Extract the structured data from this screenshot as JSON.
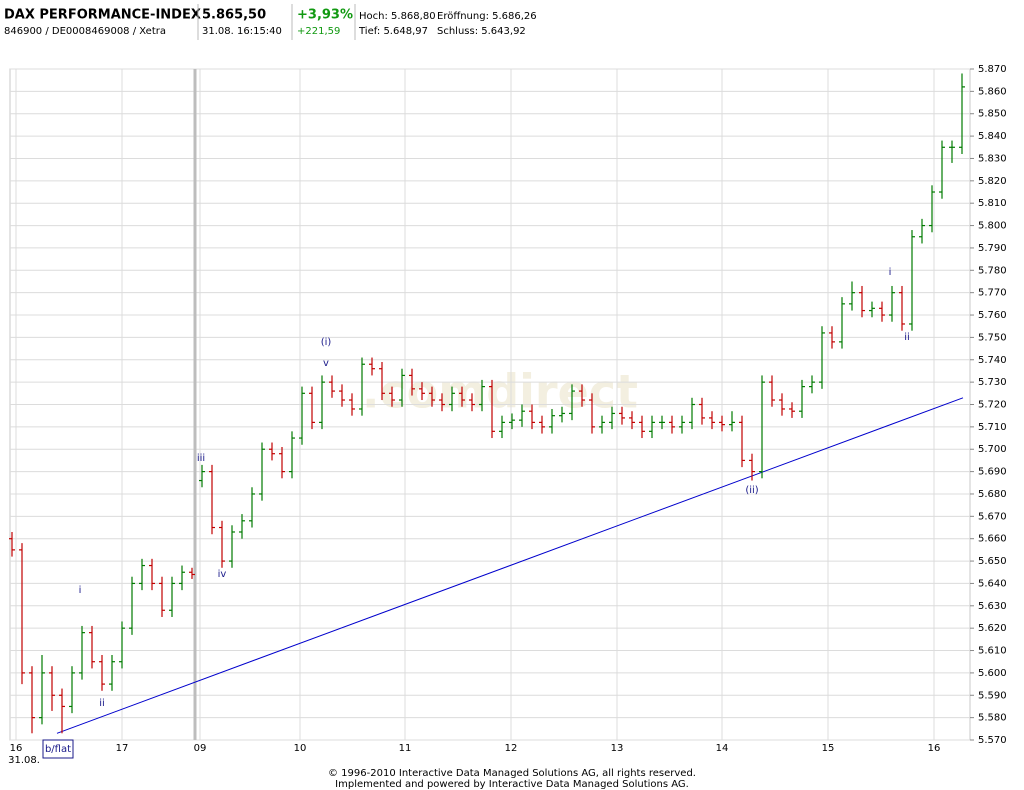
{
  "header": {
    "name": "DAX PERFORMANCE-INDEX",
    "id": "846900 / DE0008469008 / Xetra",
    "price": "5.865,50",
    "time": "31.08. 16:15:40",
    "change_pct": "+3,93%",
    "change_abs": "+221,59",
    "high": "Hoch: 5.868,80",
    "open": "Eröffnung: 5.686,26",
    "low": "Tief: 5.648,97",
    "prev_close": "Schluss: 5.643,92"
  },
  "footer": [
    "© 1996-2010 Interactive Data Managed Solutions AG, all rights reserved.",
    "Implemented and powered by Interactive Data Managed Solutions AG."
  ],
  "chart_data": {
    "type": "ohlc",
    "watermark": ".comdirect",
    "up_color": "#007a00",
    "down_color": "#c00000",
    "grid": true,
    "ylim": [
      5570,
      5870
    ],
    "yticks": [
      {
        "value": 5570,
        "label": "5.570"
      },
      {
        "value": 5580,
        "label": "5.580"
      },
      {
        "value": 5590,
        "label": "5.590"
      },
      {
        "value": 5600,
        "label": "5.600"
      },
      {
        "value": 5610,
        "label": "5.610"
      },
      {
        "value": 5620,
        "label": "5.620"
      },
      {
        "value": 5630,
        "label": "5.630"
      },
      {
        "value": 5640,
        "label": "5.640"
      },
      {
        "value": 5650,
        "label": "5.650"
      },
      {
        "value": 5660,
        "label": "5.660"
      },
      {
        "value": 5670,
        "label": "5.670"
      },
      {
        "value": 5680,
        "label": "5.680"
      },
      {
        "value": 5690,
        "label": "5.690"
      },
      {
        "value": 5700,
        "label": "5.700"
      },
      {
        "value": 5710,
        "label": "5.710"
      },
      {
        "value": 5720,
        "label": "5.720"
      },
      {
        "value": 5730,
        "label": "5.730"
      },
      {
        "value": 5740,
        "label": "5.740"
      },
      {
        "value": 5750,
        "label": "5.750"
      },
      {
        "value": 5760,
        "label": "5.760"
      },
      {
        "value": 5770,
        "label": "5.770"
      },
      {
        "value": 5780,
        "label": "5.780"
      },
      {
        "value": 5790,
        "label": "5.790"
      },
      {
        "value": 5800,
        "label": "5.800"
      },
      {
        "value": 5810,
        "label": "5.810"
      },
      {
        "value": 5820,
        "label": "5.820"
      },
      {
        "value": 5830,
        "label": "5.830"
      },
      {
        "value": 5840,
        "label": "5.840"
      },
      {
        "value": 5850,
        "label": "5.850"
      },
      {
        "value": 5860,
        "label": "5.860"
      },
      {
        "value": 5870,
        "label": "5.870"
      }
    ],
    "xlim": [
      -0.2,
      95.8
    ],
    "xticks": [
      {
        "value": 0.4,
        "label": "16"
      },
      {
        "value": 11,
        "label": "17"
      },
      {
        "value": 18.8,
        "label": "09"
      },
      {
        "value": 28.8,
        "label": "10"
      },
      {
        "value": 39.3,
        "label": "11"
      },
      {
        "value": 49.9,
        "label": "12"
      },
      {
        "value": 60.5,
        "label": "13"
      },
      {
        "value": 71,
        "label": "14"
      },
      {
        "value": 81.6,
        "label": "15"
      },
      {
        "value": 92.2,
        "label": "16"
      }
    ],
    "x_sublabel": "31.08.",
    "trendline": {
      "color": "#0000cc",
      "x": [
        4.5,
        95.1
      ],
      "y": [
        5573,
        5723
      ]
    },
    "annotations": [
      "b/flat",
      "i",
      "ii",
      "iii",
      "iv",
      "(i)",
      "v",
      "(ii)",
      "i",
      "ii"
    ],
    "bars": [
      [
        5660,
        5663,
        5652,
        5655
      ],
      [
        5655,
        5658,
        5595,
        5600
      ],
      [
        5600,
        5603,
        5573,
        5580
      ],
      [
        5580,
        5608,
        5577,
        5600
      ],
      [
        5600,
        5603,
        5583,
        5590
      ],
      [
        5590,
        5593,
        5573,
        5585
      ],
      [
        5585,
        5603,
        5582,
        5600
      ],
      [
        5600,
        5621,
        5597,
        5618
      ],
      [
        5618,
        5621,
        5602,
        5605
      ],
      [
        5605,
        5608,
        5592,
        5595
      ],
      [
        5595,
        5608,
        5592,
        5605
      ],
      [
        5605,
        5623,
        5602,
        5620
      ],
      [
        5620,
        5643,
        5617,
        5640
      ],
      [
        5640,
        5651,
        5637,
        5648
      ],
      [
        5648,
        5651,
        5637,
        5640
      ],
      [
        5640,
        5643,
        5625,
        5628
      ],
      [
        5628,
        5643,
        5625,
        5640
      ],
      [
        5640,
        5648,
        5637,
        5645
      ],
      [
        5645,
        5647,
        5642,
        5644
      ],
      [
        5686,
        5693,
        5683,
        5690
      ],
      [
        5690,
        5693,
        5662,
        5665
      ],
      [
        5665,
        5668,
        5647,
        5650
      ],
      [
        5650,
        5666,
        5647,
        5663
      ],
      [
        5663,
        5671,
        5660,
        5668
      ],
      [
        5668,
        5683,
        5665,
        5680
      ],
      [
        5680,
        5703,
        5677,
        5700
      ],
      [
        5700,
        5703,
        5695,
        5698
      ],
      [
        5698,
        5701,
        5687,
        5690
      ],
      [
        5690,
        5708,
        5687,
        5705
      ],
      [
        5705,
        5728,
        5702,
        5725
      ],
      [
        5725,
        5728,
        5709,
        5712
      ],
      [
        5712,
        5733,
        5709,
        5730
      ],
      [
        5730,
        5733,
        5723,
        5726
      ],
      [
        5726,
        5729,
        5719,
        5722
      ],
      [
        5722,
        5725,
        5715,
        5718
      ],
      [
        5718,
        5741,
        5715,
        5738
      ],
      [
        5738,
        5741,
        5733,
        5736
      ],
      [
        5736,
        5739,
        5722,
        5725
      ],
      [
        5725,
        5728,
        5719,
        5722
      ],
      [
        5722,
        5736,
        5719,
        5733
      ],
      [
        5733,
        5736,
        5724,
        5727
      ],
      [
        5727,
        5730,
        5722,
        5725
      ],
      [
        5725,
        5728,
        5719,
        5722
      ],
      [
        5722,
        5725,
        5717,
        5720
      ],
      [
        5720,
        5728,
        5717,
        5725
      ],
      [
        5725,
        5728,
        5719,
        5722
      ],
      [
        5722,
        5725,
        5717,
        5720
      ],
      [
        5720,
        5731,
        5717,
        5728
      ],
      [
        5728,
        5731,
        5705,
        5708
      ],
      [
        5708,
        5715,
        5705,
        5712
      ],
      [
        5712,
        5716,
        5709,
        5713
      ],
      [
        5713,
        5720,
        5710,
        5717
      ],
      [
        5717,
        5720,
        5709,
        5712
      ],
      [
        5712,
        5715,
        5707,
        5710
      ],
      [
        5710,
        5718,
        5707,
        5715
      ],
      [
        5715,
        5719,
        5712,
        5716
      ],
      [
        5716,
        5729,
        5713,
        5726
      ],
      [
        5726,
        5729,
        5719,
        5722
      ],
      [
        5722,
        5725,
        5707,
        5710
      ],
      [
        5710,
        5715,
        5707,
        5712
      ],
      [
        5712,
        5719,
        5709,
        5716
      ],
      [
        5716,
        5719,
        5711,
        5714
      ],
      [
        5714,
        5717,
        5709,
        5712
      ],
      [
        5712,
        5715,
        5705,
        5708
      ],
      [
        5708,
        5715,
        5705,
        5712
      ],
      [
        5712,
        5715,
        5709,
        5712
      ],
      [
        5712,
        5715,
        5707,
        5710
      ],
      [
        5710,
        5715,
        5707,
        5712
      ],
      [
        5712,
        5723,
        5709,
        5720
      ],
      [
        5720,
        5723,
        5711,
        5714
      ],
      [
        5714,
        5717,
        5709,
        5712
      ],
      [
        5712,
        5715,
        5708,
        5711
      ],
      [
        5711,
        5717,
        5708,
        5712
      ],
      [
        5712,
        5715,
        5692,
        5695
      ],
      [
        5695,
        5698,
        5686,
        5690
      ],
      [
        5690,
        5733,
        5687,
        5730
      ],
      [
        5730,
        5733,
        5719,
        5722
      ],
      [
        5722,
        5725,
        5715,
        5718
      ],
      [
        5718,
        5721,
        5714,
        5717
      ],
      [
        5717,
        5731,
        5714,
        5728
      ],
      [
        5728,
        5733,
        5725,
        5730
      ],
      [
        5730,
        5755,
        5727,
        5752
      ],
      [
        5752,
        5755,
        5745,
        5748
      ],
      [
        5748,
        5768,
        5745,
        5765
      ],
      [
        5765,
        5775,
        5762,
        5770
      ],
      [
        5770,
        5773,
        5759,
        5762
      ],
      [
        5762,
        5766,
        5759,
        5763
      ],
      [
        5763,
        5766,
        5757,
        5760
      ],
      [
        5760,
        5773,
        5757,
        5770
      ],
      [
        5770,
        5773,
        5753,
        5756
      ],
      [
        5756,
        5798,
        5753,
        5795
      ],
      [
        5795,
        5803,
        5792,
        5800
      ],
      [
        5800,
        5818,
        5797,
        5815
      ],
      [
        5815,
        5838,
        5812,
        5835
      ],
      [
        5835,
        5838,
        5828,
        5835
      ],
      [
        5835,
        5868,
        5832,
        5862
      ]
    ]
  }
}
